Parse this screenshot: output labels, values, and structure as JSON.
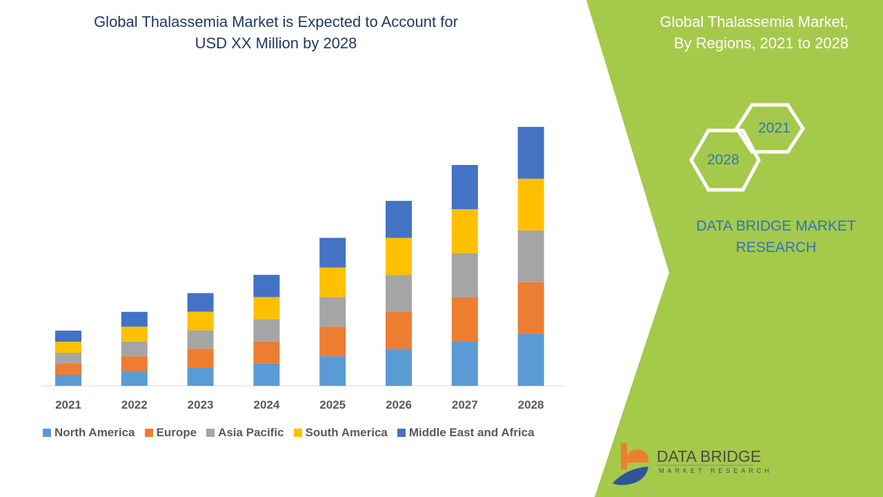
{
  "title": "Global Thalassemia Market is Expected to Account for USD XX Million by 2028",
  "title_lines": [
    "Global Thalassemia Market is Expected to Account for",
    "USD XX Million by 2028"
  ],
  "side_panel": {
    "title_lines": [
      "Global Thalassemia Market,",
      "By Regions, 2021 to 2028"
    ],
    "hex_labels": [
      "2021",
      "2028"
    ],
    "brand_lines": [
      "DATA BRIDGE MARKET",
      "RESEARCH"
    ],
    "logo_name": "DATA BRIDGE",
    "logo_sub": "MARKET RESEARCH",
    "panel_color": "#a5c94b"
  },
  "chart_data": {
    "type": "bar",
    "stacked": true,
    "categories": [
      "2021",
      "2022",
      "2023",
      "2024",
      "2025",
      "2026",
      "2027",
      "2028"
    ],
    "series": [
      {
        "name": "North America",
        "color": "#5b9bd5",
        "values": [
          1.0,
          1.34,
          1.68,
          2.01,
          2.68,
          3.35,
          4.0,
          4.69
        ]
      },
      {
        "name": "Europe",
        "color": "#ed7d31",
        "values": [
          1.0,
          1.34,
          1.68,
          2.01,
          2.68,
          3.35,
          4.0,
          4.69
        ]
      },
      {
        "name": "Asia Pacific",
        "color": "#a5a5a5",
        "values": [
          1.0,
          1.34,
          1.68,
          2.01,
          2.68,
          3.35,
          4.0,
          4.69
        ]
      },
      {
        "name": "South America",
        "color": "#ffc000",
        "values": [
          1.0,
          1.34,
          1.68,
          2.01,
          2.68,
          3.35,
          4.0,
          4.69
        ]
      },
      {
        "name": "Middle East and Africa",
        "color": "#4472c4",
        "values": [
          1.0,
          1.34,
          1.68,
          2.01,
          2.68,
          3.35,
          4.0,
          4.69
        ]
      }
    ],
    "y_axis_shown": false,
    "grid": false,
    "legend_position": "bottom"
  }
}
